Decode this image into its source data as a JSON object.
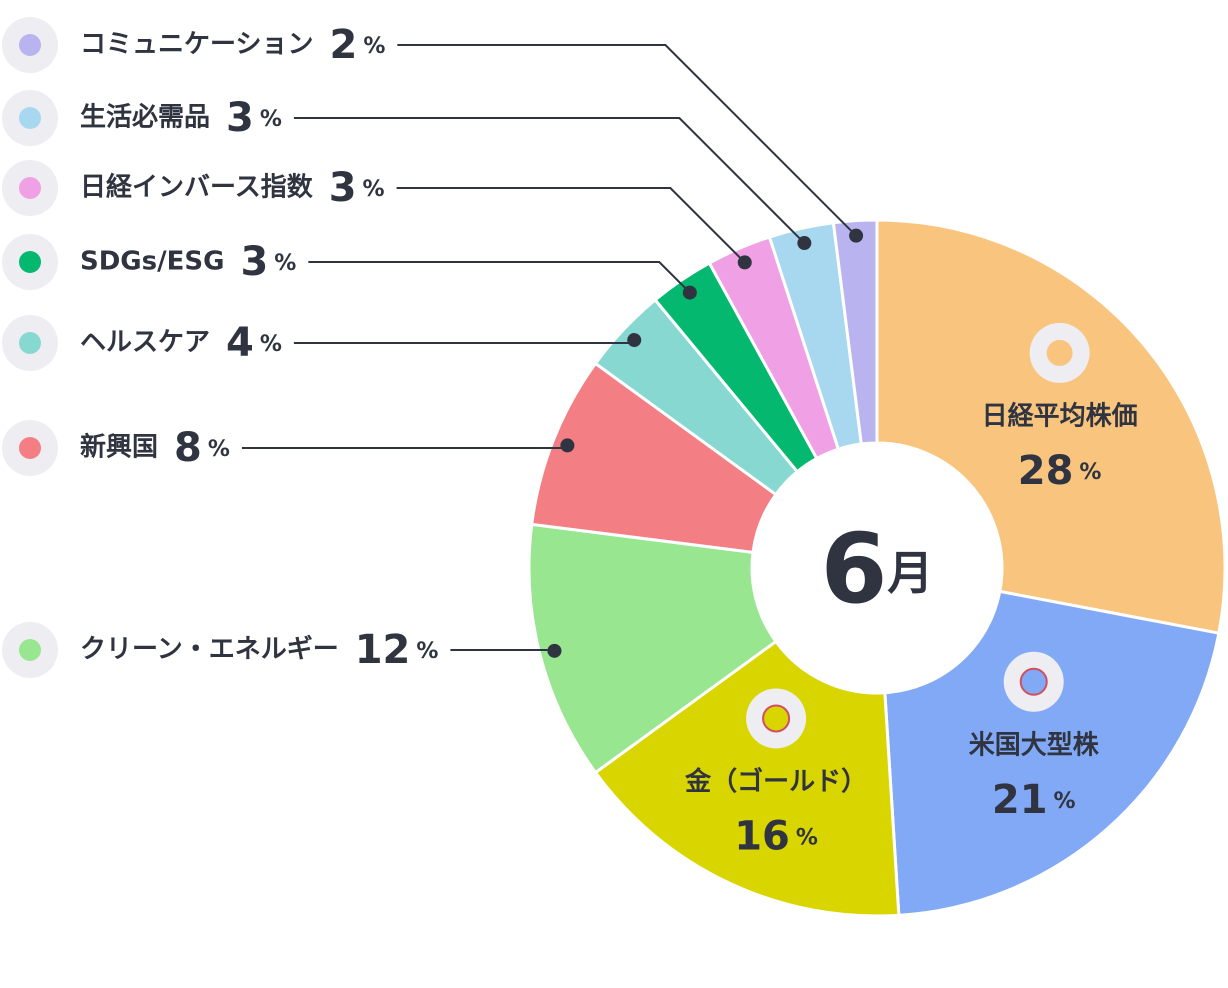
{
  "chart_data": {
    "type": "donut",
    "center_number": "6",
    "center_unit": "月",
    "categories": [
      "日経平均株価",
      "米国大型株",
      "金（ゴールド）",
      "クリーン・エネルギー",
      "新興国",
      "ヘルスケア",
      "SDGs/ESG",
      "日経インバース指数",
      "生活必需品",
      "コミュニケーション"
    ],
    "values": [
      28,
      21,
      16,
      12,
      8,
      4,
      3,
      3,
      3,
      2
    ],
    "unit": "%",
    "colors": [
      "#f8c47e",
      "#82a9f5",
      "#d9d500",
      "#98e690",
      "#f37e84",
      "#88d8d2",
      "#05b86f",
      "#f0a0e4",
      "#a8d8f0",
      "#b9b4ef"
    ]
  }
}
